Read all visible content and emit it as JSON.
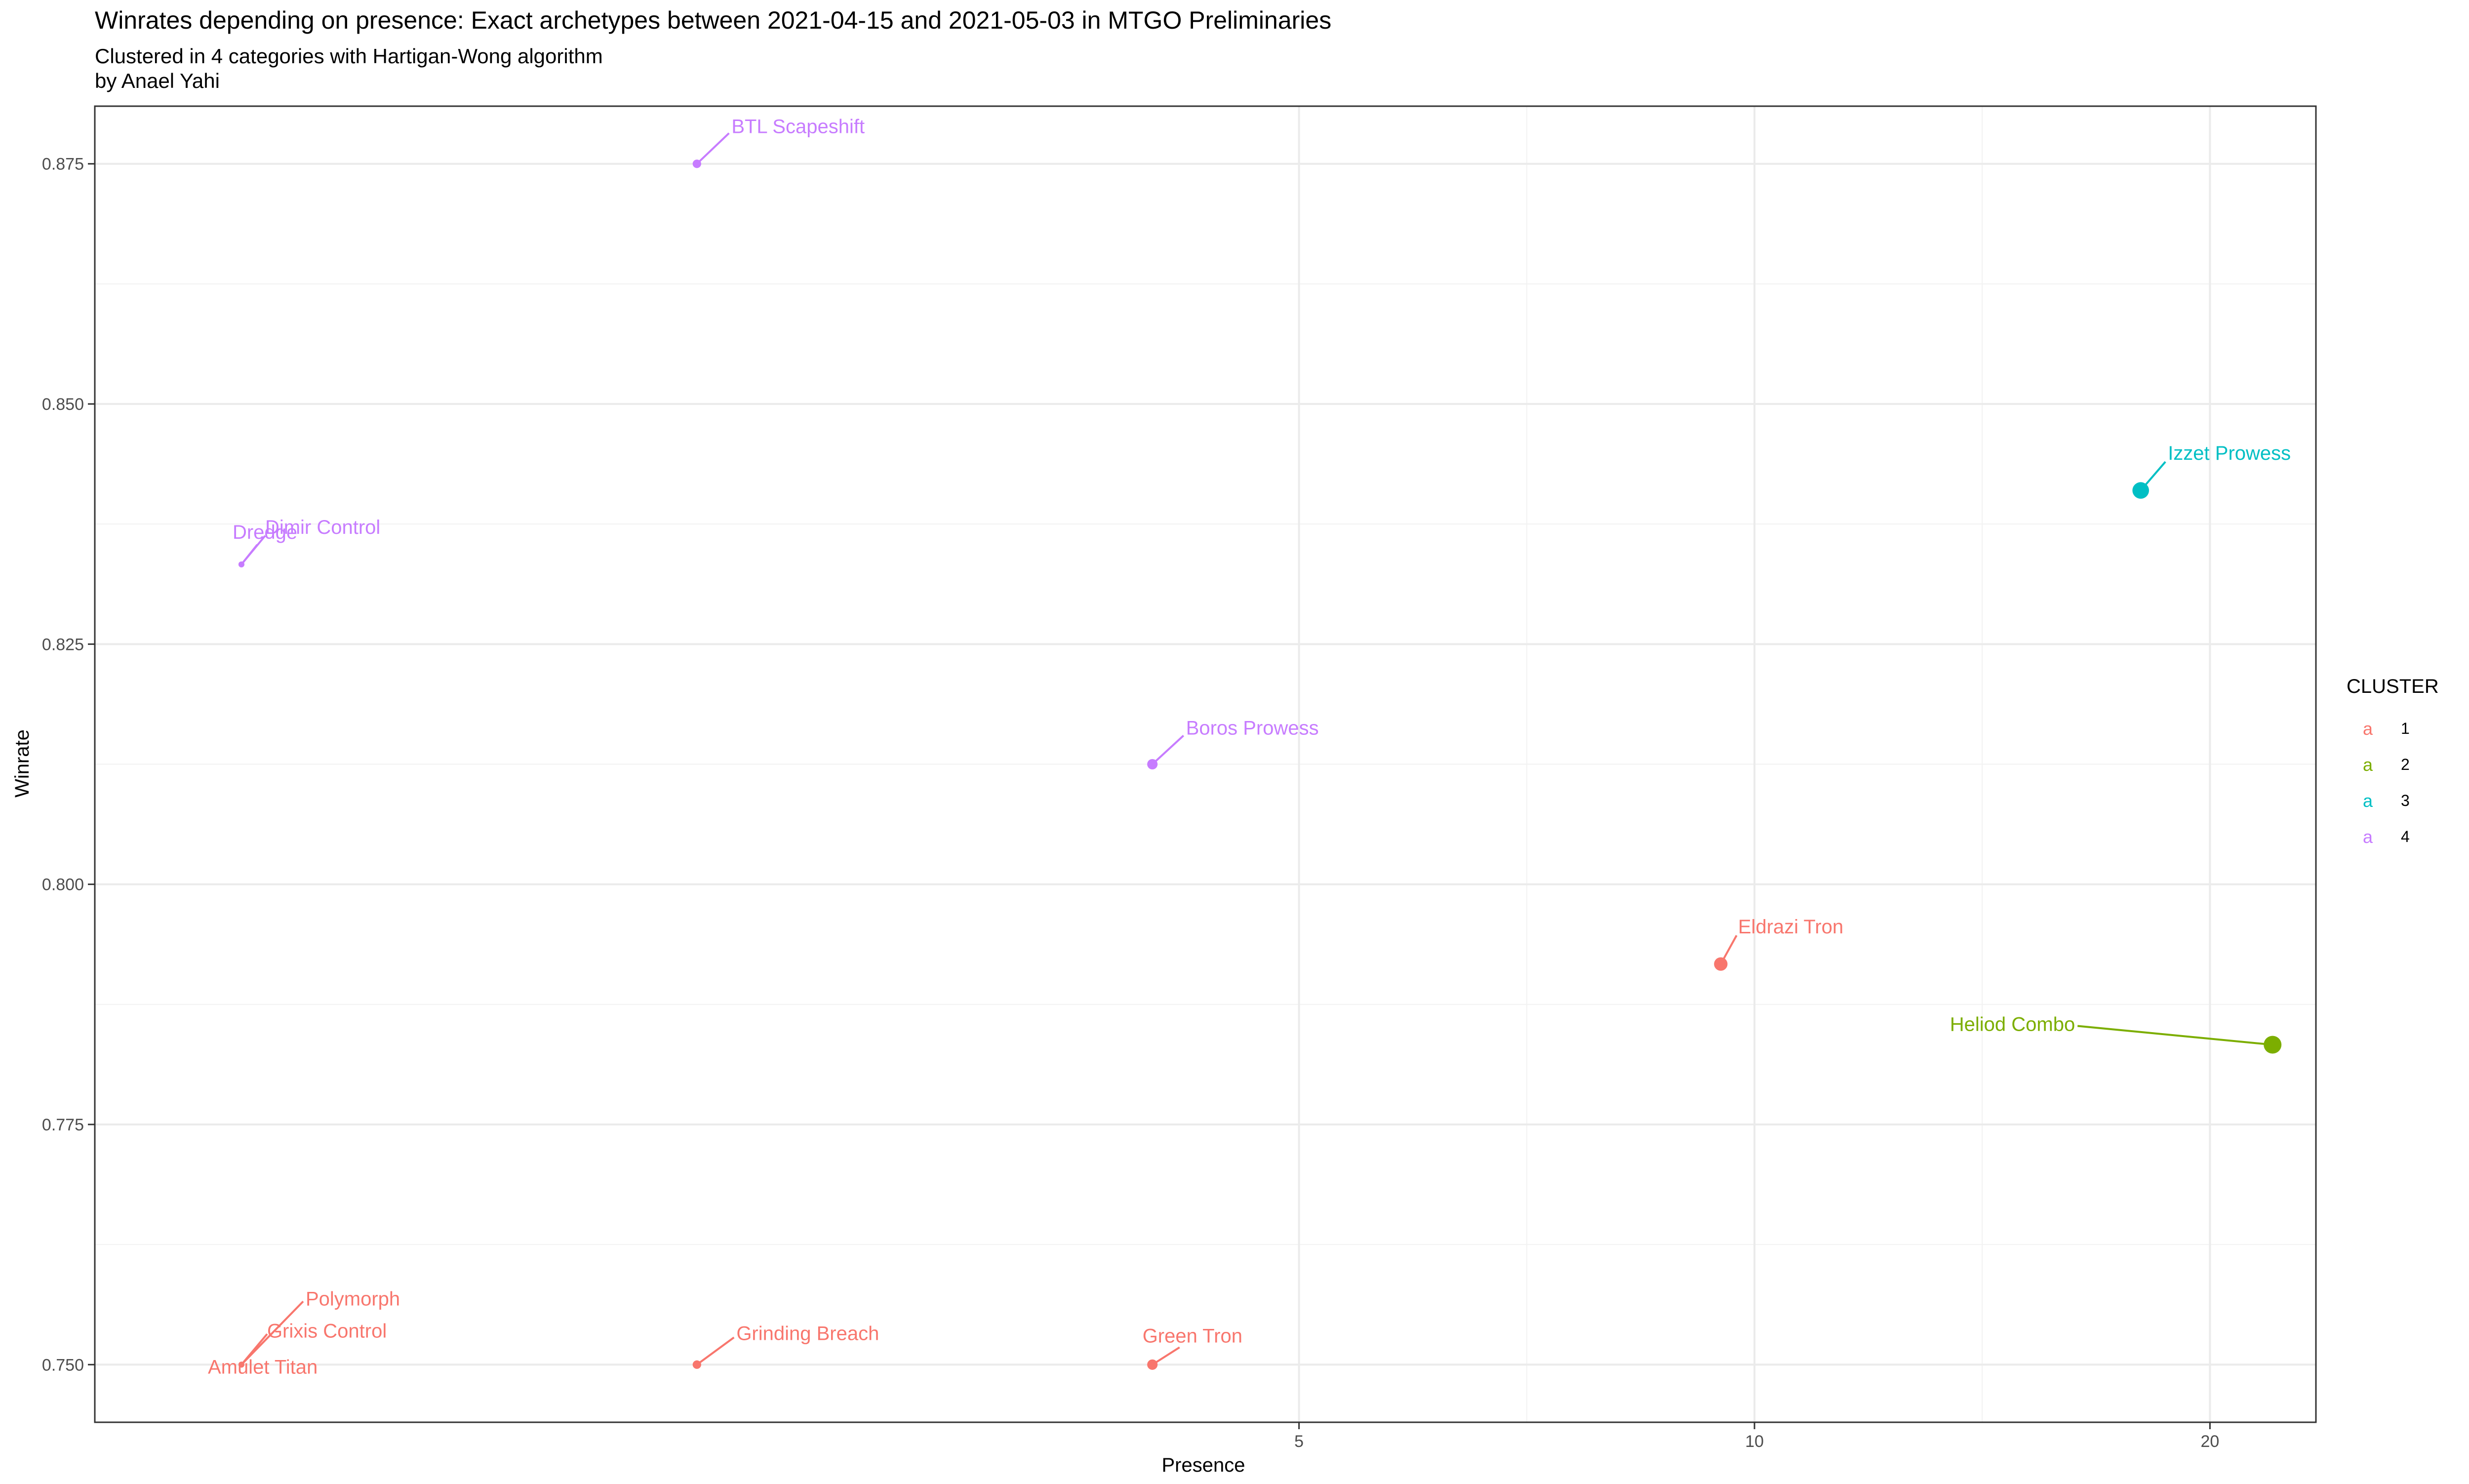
{
  "chart_data": {
    "type": "scatter",
    "title": "Winrates depending on presence: Exact archetypes  between 2021-04-15 and 2021-05-03 in MTGO Preliminaries",
    "subtitle_lines": [
      "Clustered in 4 categories with Hartigan-Wong algorithm",
      "by Anael Yahi"
    ],
    "xlabel": "Presence",
    "ylabel": "Winrate",
    "xlim": [
      0.8,
      23.5
    ],
    "ylim": [
      0.744,
      0.881
    ],
    "x_scale": "log",
    "x_ticks": [
      5,
      10,
      20
    ],
    "x_tick_labels": [
      "5",
      "10",
      "20"
    ],
    "y_ticks": [
      0.75,
      0.775,
      0.8,
      0.825,
      0.85,
      0.875
    ],
    "y_tick_labels": [
      "0.750",
      "0.775",
      "0.800",
      "0.825",
      "0.850",
      "0.875"
    ],
    "grid": true,
    "legend": {
      "title": "CLUSTER",
      "position": "right",
      "glyph": "a",
      "items": [
        {
          "label": "1",
          "color": "#F8766D"
        },
        {
          "label": "2",
          "color": "#7CAE00"
        },
        {
          "label": "3",
          "color": "#00BFC4"
        },
        {
          "label": "4",
          "color": "#C77CFF"
        }
      ]
    },
    "points": [
      {
        "label": "BTL Scapeshift",
        "x": 2.0,
        "y": 0.875,
        "cluster": 4
      },
      {
        "label": "Izzet Prowess",
        "x": 18.0,
        "y": 0.841,
        "cluster": 3
      },
      {
        "label": "Dimir Control",
        "x": 1.0,
        "y": 0.8333,
        "cluster": 4
      },
      {
        "label": "Dredge",
        "x": 1.0,
        "y": 0.8333,
        "cluster": 4
      },
      {
        "label": "Boros Prowess",
        "x": 4.0,
        "y": 0.8125,
        "cluster": 4
      },
      {
        "label": "Eldrazi Tron",
        "x": 9.5,
        "y": 0.7917,
        "cluster": 1
      },
      {
        "label": "Heliod Combo",
        "x": 22.0,
        "y": 0.7833,
        "cluster": 2
      },
      {
        "label": "Polymorph",
        "x": 1.0,
        "y": 0.75,
        "cluster": 1
      },
      {
        "label": "Grixis Control",
        "x": 1.0,
        "y": 0.75,
        "cluster": 1
      },
      {
        "label": "Amulet Titan",
        "x": 1.0,
        "y": 0.75,
        "cluster": 1
      },
      {
        "label": "Green Tron",
        "x": 4.0,
        "y": 0.75,
        "cluster": 1
      },
      {
        "label": "Grinding Breach",
        "x": 2.0,
        "y": 0.75,
        "cluster": 1
      }
    ]
  }
}
